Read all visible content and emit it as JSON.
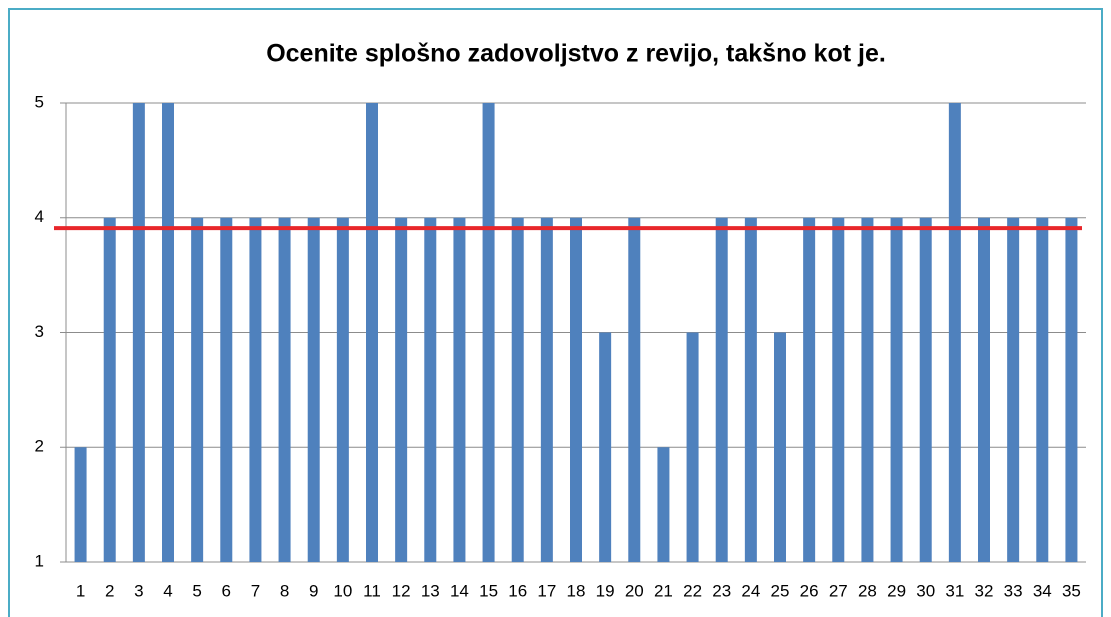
{
  "chart_data": {
    "type": "bar",
    "title": "Ocenite splošno zadovoljstvo z revijo, takšno kot je.",
    "categories": [
      "1",
      "2",
      "3",
      "4",
      "5",
      "6",
      "7",
      "8",
      "9",
      "10",
      "11",
      "12",
      "13",
      "14",
      "15",
      "16",
      "17",
      "18",
      "19",
      "20",
      "21",
      "22",
      "23",
      "24",
      "25",
      "26",
      "27",
      "28",
      "29",
      "30",
      "31",
      "32",
      "33",
      "34",
      "35"
    ],
    "values": [
      2,
      4,
      5,
      5,
      4,
      4,
      4,
      4,
      4,
      4,
      5,
      4,
      4,
      4,
      5,
      4,
      4,
      4,
      3,
      4,
      2,
      3,
      4,
      4,
      3,
      4,
      4,
      4,
      4,
      4,
      5,
      4,
      4,
      4,
      4
    ],
    "color": "#4f81bd",
    "ylim": [
      1,
      5
    ],
    "yticks": [
      1,
      2,
      3,
      4,
      5
    ],
    "grid": true,
    "reference_line": {
      "value": 3.91,
      "color": "#e8262a"
    }
  }
}
